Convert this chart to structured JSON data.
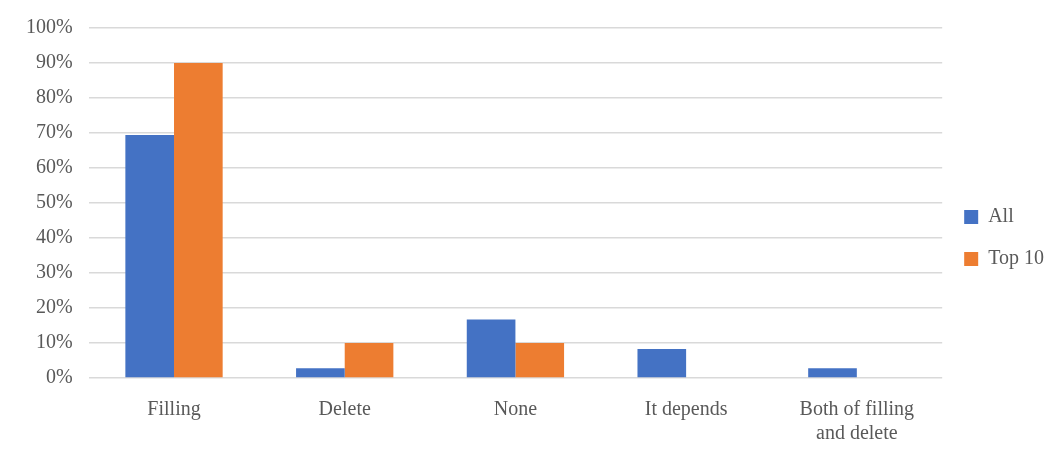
{
  "chart_data": {
    "type": "bar",
    "categories": [
      "Filling",
      "Delete",
      "None",
      "It depends",
      "Both of filling and delete"
    ],
    "series": [
      {
        "name": "All",
        "color": "#4472c4",
        "values": [
          69.4,
          2.8,
          16.7,
          8.3,
          2.8
        ]
      },
      {
        "name": "Top 10",
        "color": "#ed7d31",
        "values": [
          90,
          10,
          10,
          0,
          0
        ]
      }
    ],
    "ylim": [
      0,
      100
    ],
    "yticks": [
      {
        "value": 0,
        "label": "0%"
      },
      {
        "value": 10,
        "label": "10%"
      },
      {
        "value": 20,
        "label": "20%"
      },
      {
        "value": 30,
        "label": "30%"
      },
      {
        "value": 40,
        "label": "40%"
      },
      {
        "value": 50,
        "label": "50%"
      },
      {
        "value": 60,
        "label": "60%"
      },
      {
        "value": 70,
        "label": "70%"
      },
      {
        "value": 80,
        "label": "80%"
      },
      {
        "value": 90,
        "label": "90%"
      },
      {
        "value": 100,
        "label": "100%"
      }
    ],
    "grid": "y",
    "legend": "right"
  }
}
